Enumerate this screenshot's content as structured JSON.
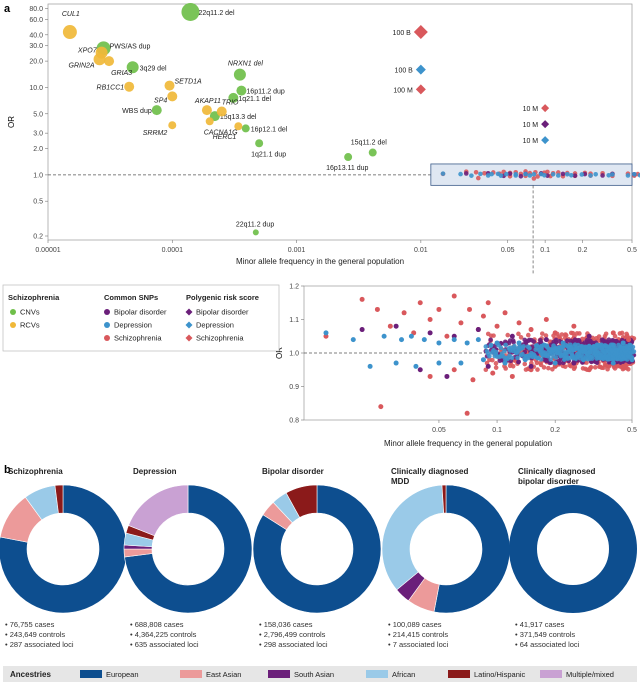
{
  "panel_a": {
    "letter": "a"
  },
  "panel_b": {
    "letter": "b"
  },
  "legend_a": {
    "groups": [
      {
        "title": "Schizophrenia",
        "items": [
          {
            "label": "CNVs",
            "shape": "circle",
            "color": "#6fbf4a"
          },
          {
            "label": "RCVs",
            "shape": "circle",
            "color": "#f0b838"
          }
        ]
      },
      {
        "title": "Common SNPs",
        "items": [
          {
            "label": "Bipolar disorder",
            "shape": "circle",
            "color": "#6b1f7a"
          },
          {
            "label": "Depression",
            "shape": "circle",
            "color": "#3d93cc"
          },
          {
            "label": "Schizophrenia",
            "shape": "circle",
            "color": "#d9585c"
          }
        ]
      },
      {
        "title": "Polygenic risk score",
        "items": [
          {
            "label": "Bipolar disorder",
            "shape": "diamond",
            "color": "#6b1f7a"
          },
          {
            "label": "Depression",
            "shape": "diamond",
            "color": "#3d93cc"
          },
          {
            "label": "Schizophrenia",
            "shape": "diamond",
            "color": "#d9585c"
          }
        ]
      }
    ]
  },
  "chart_data": [
    {
      "id": "main-scatter",
      "type": "scatter",
      "xlabel": "Minor allele frequency in the general population",
      "ylabel": "OR",
      "x_scale": "log",
      "y_scale": "log",
      "xlim": [
        1e-05,
        0.5
      ],
      "ylim": [
        0.18,
        90
      ],
      "xticks": [
        {
          "v": 1e-05,
          "label": "0.00001"
        },
        {
          "v": 0.0001,
          "label": "0.0001"
        },
        {
          "v": 0.001,
          "label": "0.001"
        },
        {
          "v": 0.01,
          "label": "0.01"
        },
        {
          "v": 0.05,
          "label": "0.05"
        },
        {
          "v": 0.1,
          "label": "0.1"
        },
        {
          "v": 0.2,
          "label": "0.2"
        },
        {
          "v": 0.5,
          "label": "0.5"
        }
      ],
      "yticks": [
        {
          "v": 0.2,
          "label": "0.2"
        },
        {
          "v": 0.5,
          "label": "0.5"
        },
        {
          "v": 1,
          "label": "1.0"
        },
        {
          "v": 2,
          "label": "2.0"
        },
        {
          "v": 3,
          "label": "3.0"
        },
        {
          "v": 5,
          "label": "5.0"
        },
        {
          "v": 10,
          "label": "10.0"
        },
        {
          "v": 20,
          "label": "20.0"
        },
        {
          "v": 30,
          "label": "30.0"
        },
        {
          "v": 40,
          "label": "40.0"
        },
        {
          "v": 60,
          "label": "60.0"
        },
        {
          "v": 80,
          "label": "80.0"
        }
      ],
      "reference_line": 1,
      "series": [
        {
          "name": "CNVs",
          "color": "#6fbf4a",
          "points": [
            {
              "x": 0.00014,
              "y": 73,
              "size": 9,
              "label": "22q11.2 del"
            },
            {
              "x": 2.8e-05,
              "y": 28,
              "size": 7,
              "label": "PWS/AS dup"
            },
            {
              "x": 4.8e-05,
              "y": 17,
              "size": 6,
              "label": "3q29 del"
            },
            {
              "x": 0.00035,
              "y": 14,
              "size": 6,
              "label": "NRXN1 del"
            },
            {
              "x": 0.00036,
              "y": 9.2,
              "size": 5,
              "label": "16p11.2 dup"
            },
            {
              "x": 0.00031,
              "y": 7.6,
              "size": 5,
              "label": "1q21.1 del"
            },
            {
              "x": 7.5e-05,
              "y": 5.5,
              "size": 5,
              "label": "WBS dup"
            },
            {
              "x": 0.00022,
              "y": 4.7,
              "size": 5,
              "label": "15q13.3 del"
            },
            {
              "x": 0.00039,
              "y": 3.4,
              "size": 4,
              "label": "16p12.1 del"
            },
            {
              "x": 0.0005,
              "y": 2.3,
              "size": 4,
              "label": "1q21.1 dup"
            },
            {
              "x": 0.0041,
              "y": 1.8,
              "size": 4,
              "label": "15q11.2 del"
            },
            {
              "x": 0.0026,
              "y": 1.6,
              "size": 4,
              "label": "16p13.11 dup"
            },
            {
              "x": 0.00047,
              "y": 0.22,
              "size": 3,
              "label": "22q11.2 dup"
            }
          ]
        },
        {
          "name": "RCVs",
          "color": "#f0b838",
          "points": [
            {
              "x": 1.5e-05,
              "y": 43,
              "size": 7,
              "label": "CUL1"
            },
            {
              "x": 2.7e-05,
              "y": 25,
              "size": 6,
              "label": "XPO7"
            },
            {
              "x": 2.6e-05,
              "y": 21,
              "size": 6,
              "label": "GRIN2A"
            },
            {
              "x": 3.1e-05,
              "y": 20,
              "size": 5,
              "label": "GRIA3"
            },
            {
              "x": 4.5e-05,
              "y": 10.2,
              "size": 5,
              "label": "RB1CC1"
            },
            {
              "x": 9.5e-05,
              "y": 10.5,
              "size": 5,
              "label": "SETD1A"
            },
            {
              "x": 0.0001,
              "y": 7.9,
              "size": 5,
              "label": "SP4"
            },
            {
              "x": 0.00019,
              "y": 5.5,
              "size": 5,
              "label": "AKAP11"
            },
            {
              "x": 0.00025,
              "y": 5.3,
              "size": 5,
              "label": "TRIO"
            },
            {
              "x": 0.0001,
              "y": 3.7,
              "size": 4,
              "label": "SRRM2"
            },
            {
              "x": 0.0002,
              "y": 4.1,
              "size": 4,
              "label": "CACNA1G"
            },
            {
              "x": 0.00034,
              "y": 3.6,
              "size": 4,
              "label": "HERC1"
            }
          ]
        }
      ],
      "prs_points": [
        {
          "label": "100 B",
          "x": 0.01,
          "y": 43,
          "color": "#d9585c",
          "size": 7
        },
        {
          "label": "100 B",
          "x": 0.01,
          "y": 16,
          "color": "#3d93cc",
          "size": 5
        },
        {
          "label": "100 M",
          "x": 0.01,
          "y": 9.5,
          "color": "#d9585c",
          "size": 5
        },
        {
          "label": "10 M",
          "x": 0.1,
          "y": 5.8,
          "color": "#d9585c",
          "size": 4
        },
        {
          "label": "10 M",
          "x": 0.1,
          "y": 3.8,
          "color": "#6b1f7a",
          "size": 4
        },
        {
          "label": "10 M",
          "x": 0.1,
          "y": 2.5,
          "color": "#3d93cc",
          "size": 4
        }
      ],
      "common_snp_band": {
        "xlim": [
          0.01,
          0.5
        ],
        "ylim": [
          0.8,
          1.2
        ]
      }
    },
    {
      "id": "inset-scatter",
      "type": "scatter",
      "xlabel": "Minor allele frequency in the general population",
      "ylabel": "OR",
      "x_scale": "log",
      "xlim": [
        0.01,
        0.5
      ],
      "ylim": [
        0.8,
        1.2
      ],
      "xticks": [
        {
          "v": 0.05,
          "label": "0.05"
        },
        {
          "v": 0.1,
          "label": "0.1"
        },
        {
          "v": 0.2,
          "label": "0.2"
        },
        {
          "v": 0.5,
          "label": "0.5"
        }
      ],
      "yticks": [
        {
          "v": 0.8,
          "label": "0.8"
        },
        {
          "v": 0.9,
          "label": "0.9"
        },
        {
          "v": 1.0,
          "label": "1.0"
        },
        {
          "v": 1.1,
          "label": "1.1"
        },
        {
          "v": 1.2,
          "label": "1.2"
        }
      ],
      "reference_line": 1,
      "series": [
        {
          "name": "Schizophrenia",
          "color": "#d9585c",
          "points": [
            {
              "x": 0.013,
              "y": 1.05
            },
            {
              "x": 0.02,
              "y": 1.16
            },
            {
              "x": 0.024,
              "y": 1.13
            },
            {
              "x": 0.028,
              "y": 1.08
            },
            {
              "x": 0.033,
              "y": 1.12
            },
            {
              "x": 0.037,
              "y": 1.06
            },
            {
              "x": 0.04,
              "y": 1.15
            },
            {
              "x": 0.045,
              "y": 1.1
            },
            {
              "x": 0.05,
              "y": 1.13
            },
            {
              "x": 0.055,
              "y": 1.05
            },
            {
              "x": 0.06,
              "y": 1.17
            },
            {
              "x": 0.065,
              "y": 1.09
            },
            {
              "x": 0.072,
              "y": 1.13
            },
            {
              "x": 0.08,
              "y": 1.07
            },
            {
              "x": 0.085,
              "y": 1.11
            },
            {
              "x": 0.09,
              "y": 1.15
            },
            {
              "x": 0.1,
              "y": 1.08
            },
            {
              "x": 0.11,
              "y": 1.12
            },
            {
              "x": 0.13,
              "y": 1.09
            },
            {
              "x": 0.15,
              "y": 1.07
            },
            {
              "x": 0.18,
              "y": 1.1
            },
            {
              "x": 0.2,
              "y": 1.06
            },
            {
              "x": 0.25,
              "y": 1.08
            },
            {
              "x": 0.3,
              "y": 1.05
            },
            {
              "x": 0.4,
              "y": 1.06
            },
            {
              "x": 0.48,
              "y": 1.04
            },
            {
              "x": 0.045,
              "y": 0.93
            },
            {
              "x": 0.06,
              "y": 0.95
            },
            {
              "x": 0.075,
              "y": 0.92
            },
            {
              "x": 0.095,
              "y": 0.94
            },
            {
              "x": 0.12,
              "y": 0.93
            },
            {
              "x": 0.15,
              "y": 0.95
            },
            {
              "x": 0.2,
              "y": 0.96
            },
            {
              "x": 0.3,
              "y": 0.95
            },
            {
              "x": 0.45,
              "y": 0.96
            },
            {
              "x": 0.07,
              "y": 0.82
            },
            {
              "x": 0.025,
              "y": 0.84
            }
          ]
        },
        {
          "name": "Bipolar disorder",
          "color": "#6b1f7a",
          "points": [
            {
              "x": 0.02,
              "y": 1.07
            },
            {
              "x": 0.03,
              "y": 1.08
            },
            {
              "x": 0.045,
              "y": 1.06
            },
            {
              "x": 0.06,
              "y": 1.05
            },
            {
              "x": 0.08,
              "y": 1.07
            },
            {
              "x": 0.12,
              "y": 1.05
            },
            {
              "x": 0.18,
              "y": 1.04
            },
            {
              "x": 0.3,
              "y": 1.05
            },
            {
              "x": 0.45,
              "y": 1.03
            },
            {
              "x": 0.04,
              "y": 0.95
            },
            {
              "x": 0.055,
              "y": 0.93
            },
            {
              "x": 0.09,
              "y": 0.96
            },
            {
              "x": 0.15,
              "y": 0.96
            },
            {
              "x": 0.25,
              "y": 0.97
            }
          ]
        },
        {
          "name": "Depression",
          "color": "#3d93cc",
          "points": [
            {
              "x": 0.013,
              "y": 1.06
            },
            {
              "x": 0.018,
              "y": 1.04
            },
            {
              "x": 0.026,
              "y": 1.05
            },
            {
              "x": 0.032,
              "y": 1.04
            },
            {
              "x": 0.036,
              "y": 1.05
            },
            {
              "x": 0.042,
              "y": 1.04
            },
            {
              "x": 0.05,
              "y": 1.03
            },
            {
              "x": 0.06,
              "y": 1.04
            },
            {
              "x": 0.07,
              "y": 1.03
            },
            {
              "x": 0.08,
              "y": 1.04
            },
            {
              "x": 0.1,
              "y": 1.03
            },
            {
              "x": 0.13,
              "y": 1.03
            },
            {
              "x": 0.17,
              "y": 1.02
            },
            {
              "x": 0.22,
              "y": 1.03
            },
            {
              "x": 0.3,
              "y": 1.02
            },
            {
              "x": 0.45,
              "y": 1.03
            },
            {
              "x": 0.022,
              "y": 0.96
            },
            {
              "x": 0.03,
              "y": 0.97
            },
            {
              "x": 0.038,
              "y": 0.96
            },
            {
              "x": 0.05,
              "y": 0.97
            },
            {
              "x": 0.065,
              "y": 0.97
            },
            {
              "x": 0.085,
              "y": 0.98
            },
            {
              "x": 0.11,
              "y": 0.97
            },
            {
              "x": 0.14,
              "y": 0.98
            },
            {
              "x": 0.2,
              "y": 0.97
            },
            {
              "x": 0.28,
              "y": 0.98
            },
            {
              "x": 0.4,
              "y": 0.97
            },
            {
              "x": 0.5,
              "y": 0.98
            }
          ]
        }
      ]
    },
    {
      "id": "ancestry-donuts",
      "type": "pie",
      "categories": [
        "European",
        "East Asian",
        "South Asian",
        "African",
        "Latino/Hispanic",
        "Multiple/mixed"
      ],
      "colors": [
        "#0d4e8f",
        "#ec9a9a",
        "#6b1f7a",
        "#9acae8",
        "#8b1a1a",
        "#c9a1d3"
      ],
      "charts": [
        {
          "title": "Schizophrenia",
          "values": [
            0.78,
            0.12,
            0.0,
            0.08,
            0.02,
            0.0
          ],
          "stats": [
            "76,755 cases",
            "243,649 controls",
            "287 associated loci"
          ]
        },
        {
          "title": "Depression",
          "values": [
            0.73,
            0.02,
            0.01,
            0.03,
            0.02,
            0.19
          ],
          "stats": [
            "688,808 cases",
            "4,364,225 controls",
            "635 associated loci"
          ]
        },
        {
          "title": "Bipolar disorder",
          "values": [
            0.84,
            0.04,
            0.0,
            0.04,
            0.08,
            0.0
          ],
          "stats": [
            "158,036 cases",
            "2,796,499 controls",
            "298 associated loci"
          ]
        },
        {
          "title": "Clinically diagnosed\nMDD",
          "values": [
            0.53,
            0.07,
            0.04,
            0.35,
            0.01,
            0.0
          ],
          "stats": [
            "100,089 cases",
            "214,415 controls",
            "7 associated loci"
          ]
        },
        {
          "title": "Clinically diagnosed\nbipolar disorder",
          "values": [
            1.0,
            0,
            0,
            0,
            0,
            0
          ],
          "stats": [
            "41,917 cases",
            "371,549 controls",
            "64 associated loci"
          ]
        }
      ],
      "legend_title": "Ancestries"
    }
  ]
}
